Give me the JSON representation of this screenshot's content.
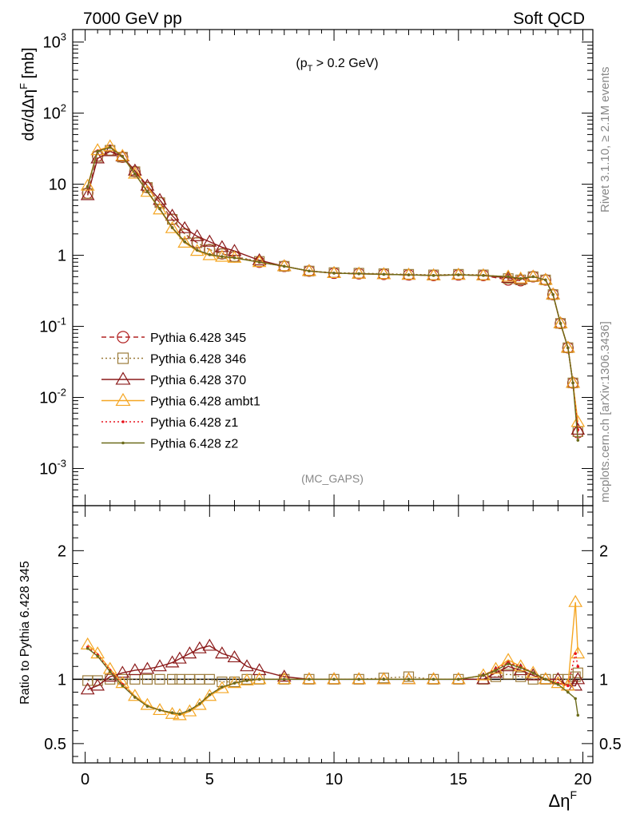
{
  "header": {
    "left": "7000 GeV pp",
    "right": "Soft QCD"
  },
  "side_labels": {
    "rivet": "Rivet 3.1.10, ≥ 2.1M events",
    "source": "mcplots.cern.ch [arXiv:1306.3436]"
  },
  "chart_data": [
    {
      "type": "line",
      "panel": "main",
      "cut_label": "(pT > 0.2 GeV)",
      "watermark": "(MC_GAPS)",
      "ylabel": "dσ/dΔηF [mb]",
      "yscale": "log",
      "xlim": [
        -0.5,
        20.4
      ],
      "ylim": [
        0.0003,
        1500
      ],
      "ytick_labels": [
        "10^-3",
        "10^-2",
        "10^-1",
        "1",
        "10",
        "10^2",
        "10^3"
      ],
      "legend_position": "center-left",
      "x": [
        0.1,
        0.5,
        1.0,
        1.5,
        2.0,
        2.5,
        3.0,
        3.5,
        4.0,
        4.5,
        5.0,
        5.5,
        6.0,
        7.0,
        8.0,
        9.0,
        10.0,
        11.0,
        12.0,
        13.0,
        14.0,
        15.0,
        16.0,
        17.0,
        17.5,
        18.0,
        18.5,
        18.8,
        19.1,
        19.4,
        19.6,
        19.8
      ],
      "series": [
        {
          "name": "Pythia 6.428 345",
          "color": "#b22222",
          "marker": "open-circle",
          "line": "dashed",
          "values": [
            7.5,
            25,
            30,
            24,
            15,
            9,
            5.5,
            3.2,
            2.0,
            1.5,
            1.2,
            1.05,
            0.95,
            0.8,
            0.7,
            0.6,
            0.56,
            0.55,
            0.54,
            0.53,
            0.52,
            0.53,
            0.52,
            0.45,
            0.44,
            0.5,
            0.45,
            0.28,
            0.11,
            0.05,
            0.016,
            0.0032
          ]
        },
        {
          "name": "Pythia 6.428 346",
          "color": "#9b7b3a",
          "marker": "open-square",
          "line": "dotted",
          "values": [
            7.4,
            24.5,
            30,
            24,
            15,
            9,
            5.5,
            3.2,
            2.0,
            1.5,
            1.2,
            1.05,
            0.96,
            0.82,
            0.7,
            0.6,
            0.57,
            0.56,
            0.55,
            0.54,
            0.53,
            0.54,
            0.53,
            0.47,
            0.45,
            0.5,
            0.45,
            0.28,
            0.11,
            0.05,
            0.016,
            0.0033
          ]
        },
        {
          "name": "Pythia 6.428 370",
          "color": "#8b1a1a",
          "marker": "open-triangle",
          "line": "solid",
          "values": [
            7.0,
            23,
            29,
            24.5,
            15.5,
            9.5,
            6.0,
            3.6,
            2.4,
            1.85,
            1.55,
            1.3,
            1.15,
            0.85,
            0.7,
            0.6,
            0.56,
            0.55,
            0.54,
            0.53,
            0.52,
            0.53,
            0.52,
            0.48,
            0.46,
            0.5,
            0.45,
            0.28,
            0.11,
            0.05,
            0.016,
            0.0035
          ]
        },
        {
          "name": "Pythia 6.428 ambt1",
          "color": "#f5a623",
          "marker": "open-triangle",
          "line": "solid",
          "values": [
            9.5,
            30,
            34,
            25,
            14,
            7.8,
            4.4,
            2.4,
            1.5,
            1.15,
            1.0,
            0.95,
            0.92,
            0.8,
            0.7,
            0.6,
            0.56,
            0.55,
            0.54,
            0.53,
            0.52,
            0.53,
            0.52,
            0.5,
            0.47,
            0.5,
            0.45,
            0.28,
            0.11,
            0.05,
            0.016,
            0.0045
          ]
        },
        {
          "name": "Pythia 6.428 z1",
          "color": "#e8141e",
          "marker": "dot",
          "line": "dotted",
          "values": [
            9.3,
            29.5,
            33,
            24.8,
            14,
            7.9,
            4.5,
            2.45,
            1.55,
            1.18,
            1.02,
            0.96,
            0.92,
            0.8,
            0.7,
            0.6,
            0.56,
            0.55,
            0.54,
            0.53,
            0.52,
            0.53,
            0.52,
            0.5,
            0.47,
            0.5,
            0.45,
            0.28,
            0.11,
            0.05,
            0.016,
            0.0035
          ]
        },
        {
          "name": "Pythia 6.428 z2",
          "color": "#6b6b1a",
          "marker": "dot",
          "line": "solid",
          "values": [
            9.2,
            29,
            33,
            24.6,
            14,
            7.9,
            4.5,
            2.45,
            1.55,
            1.18,
            1.02,
            0.96,
            0.92,
            0.8,
            0.7,
            0.6,
            0.56,
            0.55,
            0.54,
            0.53,
            0.52,
            0.53,
            0.52,
            0.5,
            0.47,
            0.5,
            0.45,
            0.28,
            0.11,
            0.05,
            0.016,
            0.0025
          ]
        }
      ]
    },
    {
      "type": "line",
      "panel": "ratio",
      "ylabel": "Ratio to Pythia 6.428 345",
      "xlabel": "ΔηF",
      "xlim": [
        -0.5,
        20.4
      ],
      "ylim": [
        0.35,
        2.35
      ],
      "ytick_labels": [
        "0.5",
        "1",
        "2"
      ],
      "xtick_labels": [
        "0",
        "5",
        "10",
        "15",
        "20"
      ],
      "x": [
        0.1,
        0.5,
        1.0,
        1.5,
        2.0,
        2.5,
        3.0,
        3.5,
        3.8,
        4.2,
        4.6,
        5.0,
        5.5,
        6.0,
        6.5,
        7.0,
        8.0,
        9.0,
        10.0,
        11.0,
        12.0,
        13.0,
        14.0,
        15.0,
        16.0,
        16.5,
        17.0,
        17.5,
        18.0,
        18.5,
        19.0,
        19.4,
        19.7,
        19.8
      ],
      "series": [
        {
          "name": "Pythia 6.428 346",
          "color": "#9b7b3a",
          "values": [
            0.99,
            0.99,
            1.0,
            1.0,
            1.0,
            1.0,
            1.0,
            1.0,
            1.0,
            1.0,
            1.0,
            1.0,
            0.98,
            0.98,
            1.0,
            1.0,
            1.0,
            1.0,
            1.0,
            1.0,
            1.01,
            1.02,
            1.0,
            1.0,
            1.0,
            1.02,
            1.04,
            1.02,
            1.0,
            1.0,
            1.0,
            1.0,
            1.02,
            1.05
          ]
        },
        {
          "name": "Pythia 6.428 370",
          "color": "#8b1a1a",
          "values": [
            0.92,
            0.95,
            1.02,
            1.05,
            1.07,
            1.08,
            1.1,
            1.13,
            1.16,
            1.2,
            1.24,
            1.26,
            1.2,
            1.17,
            1.1,
            1.07,
            1.02,
            1.0,
            1.0,
            1.0,
            1.0,
            1.0,
            1.0,
            1.0,
            1.0,
            1.05,
            1.1,
            1.07,
            1.03,
            1.0,
            1.0,
            0.95,
            0.95,
            1.0
          ]
        },
        {
          "name": "Pythia 6.428 ambt1",
          "color": "#f5a623",
          "values": [
            1.27,
            1.2,
            1.08,
            0.97,
            0.87,
            0.8,
            0.76,
            0.73,
            0.72,
            0.75,
            0.8,
            0.87,
            0.93,
            0.97,
            0.99,
            1.0,
            1.0,
            1.0,
            1.0,
            1.0,
            1.0,
            1.0,
            1.0,
            1.0,
            1.03,
            1.08,
            1.15,
            1.1,
            1.05,
            1.0,
            0.97,
            0.95,
            1.6,
            1.2
          ]
        },
        {
          "name": "Pythia 6.428 z1",
          "color": "#e8141e",
          "values": [
            1.25,
            1.19,
            1.07,
            0.96,
            0.86,
            0.79,
            0.76,
            0.74,
            0.73,
            0.76,
            0.81,
            0.88,
            0.94,
            0.97,
            0.99,
            1.0,
            1.0,
            1.0,
            1.0,
            1.0,
            1.0,
            1.0,
            1.0,
            1.0,
            1.03,
            1.08,
            1.13,
            1.1,
            1.05,
            1.0,
            0.97,
            0.95,
            1.2,
            1.1
          ]
        },
        {
          "name": "Pythia 6.428 z2",
          "color": "#6b6b1a",
          "values": [
            1.24,
            1.18,
            1.06,
            0.95,
            0.86,
            0.79,
            0.76,
            0.74,
            0.73,
            0.76,
            0.81,
            0.88,
            0.94,
            0.97,
            0.99,
            1.0,
            1.0,
            1.0,
            1.0,
            1.0,
            1.0,
            1.0,
            1.0,
            1.0,
            1.03,
            1.07,
            1.12,
            1.09,
            1.05,
            1.0,
            0.96,
            0.9,
            0.85,
            0.72
          ]
        }
      ]
    }
  ]
}
